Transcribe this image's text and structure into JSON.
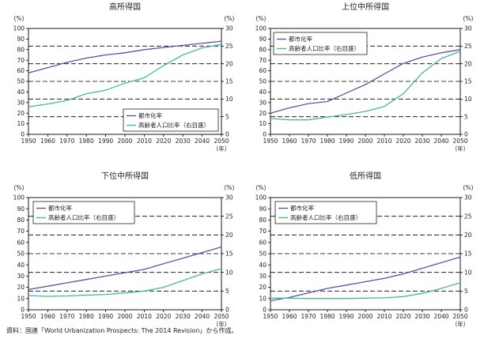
{
  "source_note": "資料：国連「World Urbanization Prospects: The 2014 Revision」から作成。",
  "chart_data": [
    {
      "type": "line",
      "title": "高所得国",
      "x": [
        1950,
        1960,
        1970,
        1980,
        1990,
        2000,
        2010,
        2020,
        2030,
        2040,
        2050
      ],
      "x_ticks": [
        "1950",
        "1960",
        "1970",
        "1980",
        "1990",
        "2000",
        "2010",
        "2020",
        "2030",
        "2040",
        "2050"
      ],
      "x_unit": "（年）",
      "y_left_unit": "(%)",
      "y_right_unit": "(%)",
      "ylim_left": [
        0,
        100
      ],
      "ylim_right": [
        0,
        30
      ],
      "y_left_ticks": [
        "0",
        "10",
        "20",
        "30",
        "40",
        "50",
        "60",
        "70",
        "80",
        "90",
        "100"
      ],
      "y_right_ticks": [
        "0",
        "5",
        "10",
        "15",
        "20",
        "25",
        "30"
      ],
      "grid": true,
      "legend_position": "bottom-right",
      "series": [
        {
          "name": "都市化率",
          "axis": "left",
          "color": "#5a55a3",
          "values": [
            58,
            63,
            68,
            72,
            75,
            77,
            80,
            82,
            84,
            86,
            88
          ]
        },
        {
          "name": "高齢者人口比率（右目盛）",
          "axis": "right",
          "color": "#48b89a",
          "values": [
            7.8,
            8.6,
            9.6,
            11.5,
            12.5,
            14.5,
            16,
            19.5,
            22.5,
            24.5,
            25.5
          ]
        }
      ]
    },
    {
      "type": "line",
      "title": "上位中所得国",
      "x": [
        1950,
        1960,
        1970,
        1980,
        1990,
        2000,
        2010,
        2020,
        2030,
        2040,
        2050
      ],
      "x_ticks": [
        "1950",
        "1960",
        "1970",
        "1980",
        "1990",
        "2000",
        "2010",
        "2020",
        "2030",
        "2040",
        "2050"
      ],
      "x_unit": "（年）",
      "y_left_unit": "(%)",
      "y_right_unit": "(%)",
      "ylim_left": [
        0,
        100
      ],
      "ylim_right": [
        0,
        30
      ],
      "y_left_ticks": [
        "0",
        "10",
        "20",
        "30",
        "40",
        "50",
        "60",
        "70",
        "80",
        "90",
        "100"
      ],
      "y_right_ticks": [
        "0",
        "5",
        "10",
        "15",
        "20",
        "25",
        "30"
      ],
      "grid": true,
      "legend_position": "top-left",
      "series": [
        {
          "name": "都市化率",
          "axis": "left",
          "color": "#5a55a3",
          "values": [
            20,
            25,
            29,
            31,
            39,
            47,
            57,
            67,
            73,
            77,
            80
          ]
        },
        {
          "name": "高齢者人口比率（右目盛）",
          "axis": "right",
          "color": "#48b89a",
          "values": [
            4.5,
            4.1,
            4.1,
            4.9,
            5.6,
            6.5,
            7.9,
            11.5,
            17.4,
            21.5,
            23.5
          ]
        }
      ]
    },
    {
      "type": "line",
      "title": "下位中所得国",
      "x": [
        1950,
        1960,
        1970,
        1980,
        1990,
        2000,
        2010,
        2020,
        2030,
        2040,
        2050
      ],
      "x_ticks": [
        "1950",
        "1960",
        "1970",
        "1980",
        "1990",
        "2000",
        "2010",
        "2020",
        "2030",
        "2040",
        "2050"
      ],
      "x_unit": "（年）",
      "y_left_unit": "(%)",
      "y_right_unit": "(%)",
      "ylim_left": [
        0,
        100
      ],
      "ylim_right": [
        0,
        30
      ],
      "y_left_ticks": [
        "0",
        "10",
        "20",
        "30",
        "40",
        "50",
        "60",
        "70",
        "80",
        "90",
        "100"
      ],
      "y_right_ticks": [
        "0",
        "5",
        "10",
        "15",
        "20",
        "25",
        "30"
      ],
      "grid": true,
      "legend_position": "top-left",
      "series": [
        {
          "name": "都市化率",
          "axis": "left",
          "color": "#5a55a3",
          "values": [
            18,
            21,
            24,
            27,
            30,
            33,
            36,
            41,
            46,
            51,
            56
          ]
        },
        {
          "name": "高齢者人口比率（右目盛）",
          "axis": "right",
          "color": "#48b89a",
          "values": [
            3.8,
            3.6,
            3.7,
            3.9,
            4.1,
            4.5,
            5.0,
            6.0,
            7.8,
            9.6,
            11.0
          ]
        }
      ]
    },
    {
      "type": "line",
      "title": "低所得国",
      "x": [
        1950,
        1960,
        1970,
        1980,
        1990,
        2000,
        2010,
        2020,
        2030,
        2040,
        2050
      ],
      "x_ticks": [
        "1950",
        "1960",
        "1970",
        "1980",
        "1990",
        "2000",
        "2010",
        "2020",
        "2030",
        "2040",
        "2050"
      ],
      "x_unit": "（年）",
      "y_left_unit": "(%)",
      "y_right_unit": "(%)",
      "ylim_left": [
        0,
        100
      ],
      "ylim_right": [
        0,
        30
      ],
      "y_left_ticks": [
        "0",
        "10",
        "20",
        "30",
        "40",
        "50",
        "60",
        "70",
        "80",
        "90",
        "100"
      ],
      "y_right_ticks": [
        "0",
        "5",
        "10",
        "15",
        "20",
        "25",
        "30"
      ],
      "grid": true,
      "legend_position": "top-left",
      "series": [
        {
          "name": "都市化率",
          "axis": "left",
          "color": "#5a55a3",
          "values": [
            8,
            11,
            15,
            19,
            22,
            25,
            28,
            32,
            37,
            42,
            47
          ]
        },
        {
          "name": "高齢者人口比率（右目盛）",
          "axis": "right",
          "color": "#48b89a",
          "values": [
            3.1,
            3.1,
            3.0,
            3.0,
            3.0,
            3.1,
            3.2,
            3.5,
            4.4,
            5.7,
            7.2
          ]
        }
      ]
    }
  ]
}
